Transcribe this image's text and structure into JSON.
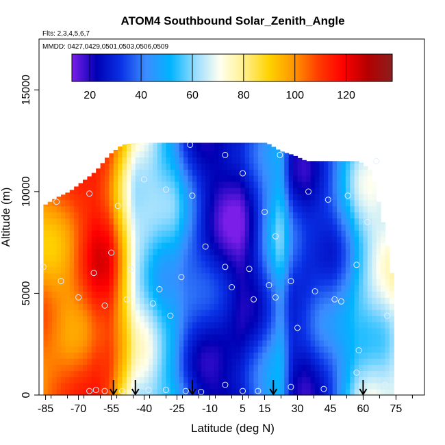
{
  "chart_data": {
    "type": "heatmap",
    "title": "ATOM4 Southbound Solar_Zenith_Angle",
    "subtitle_flights": "Flts: 2,3,4,5,6,7",
    "subtitle_dates": "MMDD: 0427,0429,0501,0503,0506,0509",
    "xlabel": "Latitude (deg N)",
    "ylabel": "Altitude (m)",
    "xlim": [
      -88,
      88
    ],
    "ylim": [
      0,
      17500
    ],
    "x_ticks": [
      -85,
      -70,
      -55,
      -40,
      -25,
      -10,
      5,
      15,
      30,
      45,
      60,
      75
    ],
    "x_tick_labels": [
      "-85",
      "-70",
      "-55",
      "-40",
      "-25",
      "-10",
      "5",
      "15",
      "30",
      "45",
      "60",
      "75"
    ],
    "y_ticks": [
      0,
      5000,
      10000,
      15000
    ],
    "y_tick_labels": [
      "0",
      "5000",
      "10000",
      "15000"
    ],
    "colorbar": {
      "range": [
        13,
        138
      ],
      "ticks": [
        20,
        40,
        60,
        80,
        100,
        120
      ],
      "tick_labels": [
        "20",
        "40",
        "60",
        "80",
        "100",
        "120"
      ],
      "colors": [
        "#7a1ee8",
        "#0000b4",
        "#0a32e6",
        "#3c8cff",
        "#00b4ff",
        "#96dcff",
        "#fffff0",
        "#fff08c",
        "#ffd200",
        "#ff9600",
        "#ff3c00",
        "#ff0000",
        "#b40000",
        "#8c1e1e"
      ]
    },
    "profile_lat_step": 2,
    "columns": [
      {
        "lat": -86,
        "top": 9300,
        "sza": 100
      },
      {
        "lat": -80,
        "top": 9700,
        "sza": 100
      },
      {
        "lat": -74,
        "top": 10000,
        "sza": 102
      },
      {
        "lat": -68,
        "top": 10500,
        "sza": 108
      },
      {
        "lat": -62,
        "top": 11000,
        "sza": 115
      },
      {
        "lat": -56,
        "top": 11800,
        "sza": 112
      },
      {
        "lat": -50,
        "top": 12300,
        "sza": 92
      },
      {
        "lat": -44,
        "top": 12400,
        "sza": 68
      },
      {
        "lat": -38,
        "top": 12400,
        "sza": 62
      },
      {
        "lat": -32,
        "top": 12400,
        "sza": 55
      },
      {
        "lat": -26,
        "top": 12400,
        "sza": 50
      },
      {
        "lat": -20,
        "top": 12400,
        "sza": 38
      },
      {
        "lat": -14,
        "top": 12400,
        "sza": 30
      },
      {
        "lat": -8,
        "top": 12400,
        "sza": 25
      },
      {
        "lat": -2,
        "top": 12400,
        "sza": 22
      },
      {
        "lat": 4,
        "top": 12400,
        "sza": 20
      },
      {
        "lat": 10,
        "top": 12400,
        "sza": 28
      },
      {
        "lat": 16,
        "top": 12400,
        "sza": 40
      },
      {
        "lat": 22,
        "top": 12000,
        "sza": 52
      },
      {
        "lat": 28,
        "top": 11800,
        "sza": 30
      },
      {
        "lat": 34,
        "top": 11500,
        "sza": 28
      },
      {
        "lat": 40,
        "top": 11500,
        "sza": 32
      },
      {
        "lat": 46,
        "top": 11500,
        "sza": 36
      },
      {
        "lat": 52,
        "top": 11500,
        "sza": 46
      },
      {
        "lat": 58,
        "top": 11500,
        "sza": 58
      },
      {
        "lat": 64,
        "top": 11000,
        "sza": 64
      },
      {
        "lat": 70,
        "top": 8000,
        "sza": 66
      },
      {
        "lat": 73,
        "top": 6000,
        "sza": 68
      }
    ],
    "markers": [
      {
        "lat": -65,
        "alt": 200
      },
      {
        "lat": -62,
        "alt": 250
      },
      {
        "lat": -58,
        "alt": 200
      },
      {
        "lat": -50,
        "alt": 200
      },
      {
        "lat": -44,
        "alt": 150
      },
      {
        "lat": -38,
        "alt": 250
      },
      {
        "lat": -30,
        "alt": 250
      },
      {
        "lat": -21,
        "alt": 200
      },
      {
        "lat": -14,
        "alt": 150
      },
      {
        "lat": -3,
        "alt": 500
      },
      {
        "lat": 5,
        "alt": 200
      },
      {
        "lat": 12,
        "alt": 200
      },
      {
        "lat": 27,
        "alt": 400
      },
      {
        "lat": 42,
        "alt": 300
      },
      {
        "lat": 57,
        "alt": 1100
      },
      {
        "lat": 70,
        "alt": 500
      },
      {
        "lat": 71,
        "alt": 3900
      },
      {
        "lat": 58,
        "alt": 2200
      },
      {
        "lat": 47,
        "alt": 4700
      },
      {
        "lat": 38,
        "alt": 5100
      },
      {
        "lat": 27,
        "alt": 5600
      },
      {
        "lat": 17,
        "alt": 5400
      },
      {
        "lat": 8,
        "alt": 6200
      },
      {
        "lat": -3,
        "alt": 6300
      },
      {
        "lat": -12,
        "alt": 7300
      },
      {
        "lat": -23,
        "alt": 5800
      },
      {
        "lat": -33,
        "alt": 5200
      },
      {
        "lat": -46,
        "alt": 6200
      },
      {
        "lat": -55,
        "alt": 7000
      },
      {
        "lat": -63,
        "alt": 6000
      },
      {
        "lat": -70,
        "alt": 4800
      },
      {
        "lat": -78,
        "alt": 5600
      },
      {
        "lat": -86,
        "alt": 6300
      },
      {
        "lat": -80,
        "alt": 9500
      },
      {
        "lat": -65,
        "alt": 9900
      },
      {
        "lat": -52,
        "alt": 9300
      },
      {
        "lat": -40,
        "alt": 10600
      },
      {
        "lat": -30,
        "alt": 10100
      },
      {
        "lat": -18,
        "alt": 9800
      },
      {
        "lat": -3,
        "alt": 11800
      },
      {
        "lat": 5,
        "alt": 10900
      },
      {
        "lat": 15,
        "alt": 9000
      },
      {
        "lat": 20,
        "alt": 7800
      },
      {
        "lat": 22,
        "alt": 11800
      },
      {
        "lat": 35,
        "alt": 10000
      },
      {
        "lat": 44,
        "alt": 9600
      },
      {
        "lat": 53,
        "alt": 9800
      },
      {
        "lat": 66,
        "alt": 11500
      },
      {
        "lat": 62,
        "alt": 8500
      },
      {
        "lat": 57,
        "alt": 6400
      },
      {
        "lat": 50,
        "alt": 4600
      },
      {
        "lat": 30,
        "alt": 3300
      },
      {
        "lat": 20,
        "alt": 4800
      },
      {
        "lat": 10,
        "alt": 4700
      },
      {
        "lat": -19,
        "alt": 12300
      },
      {
        "lat": -36,
        "alt": 4500
      },
      {
        "lat": -48,
        "alt": 4700
      },
      {
        "lat": -58,
        "alt": 4400
      },
      {
        "lat": -28,
        "alt": 3900
      },
      {
        "lat": 0,
        "alt": 5300
      }
    ],
    "arrow_latitudes": [
      -54,
      -44,
      -18,
      19,
      60
    ]
  }
}
